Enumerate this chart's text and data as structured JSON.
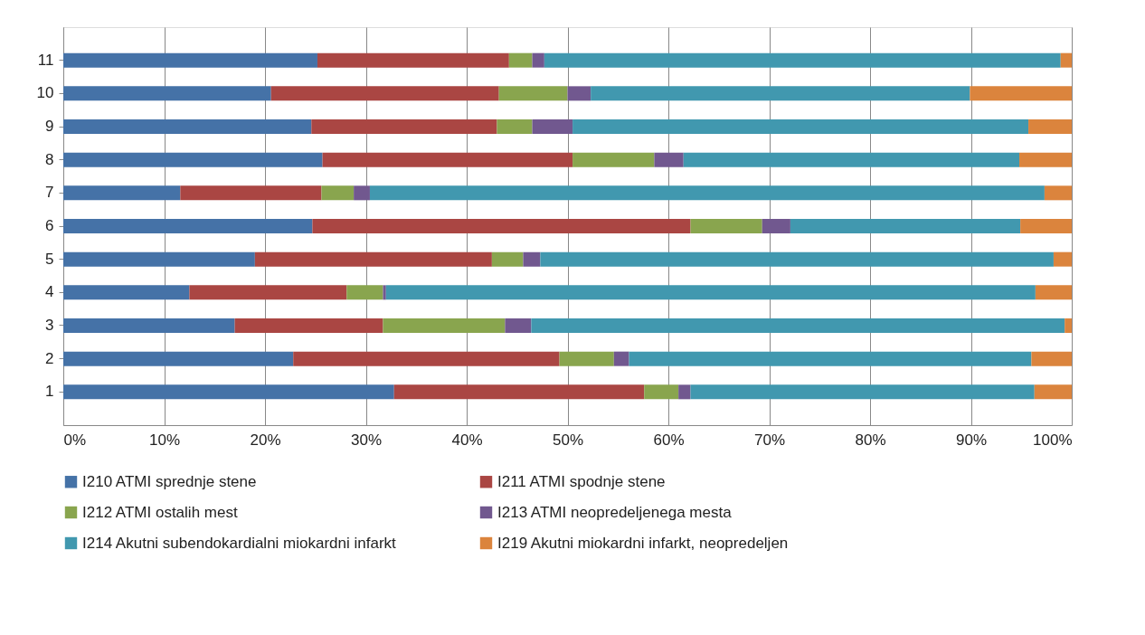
{
  "chart_data": {
    "type": "bar",
    "orientation": "horizontal",
    "stacked": true,
    "categories": [
      "11",
      "10",
      "9",
      "8",
      "7",
      "6",
      "5",
      "4",
      "3",
      "2",
      "1"
    ],
    "series": [
      {
        "name": "I210 ATMI sprednje stene",
        "color": "#4572a7",
        "values": [
          25.2,
          20.6,
          24.6,
          25.7,
          11.6,
          24.7,
          19.0,
          12.5,
          17.0,
          22.8,
          32.8
        ]
      },
      {
        "name": "I211 ATMI spodnje stene",
        "color": "#aa4643",
        "values": [
          19.0,
          22.6,
          18.4,
          24.8,
          14.0,
          37.5,
          23.5,
          15.6,
          14.7,
          26.4,
          24.8
        ]
      },
      {
        "name": "I212 ATMI ostalih mest",
        "color": "#89a54e",
        "values": [
          2.3,
          6.8,
          3.5,
          8.1,
          3.2,
          7.1,
          3.1,
          3.6,
          12.1,
          5.4,
          3.4
        ]
      },
      {
        "name": "I213 ATMI neopredeljenega mesta",
        "color": "#71588f",
        "values": [
          1.2,
          2.3,
          4.0,
          2.9,
          1.6,
          2.8,
          1.7,
          0.3,
          2.6,
          1.5,
          1.2
        ]
      },
      {
        "name": "I214 Akutni subendokardialni miokardni infarkt",
        "color": "#4198af",
        "values": [
          51.2,
          37.6,
          45.2,
          33.3,
          66.9,
          22.8,
          50.9,
          64.4,
          52.9,
          39.9,
          34.1
        ]
      },
      {
        "name": "I219 Akutni miokardni infarkt, neopredeljen",
        "color": "#db843d",
        "values": [
          1.1,
          10.1,
          4.3,
          5.2,
          2.7,
          5.1,
          1.8,
          3.6,
          0.7,
          4.0,
          3.7
        ]
      }
    ],
    "xlim": [
      0,
      100
    ],
    "xticks": [
      {
        "value": 0,
        "label": "0%"
      },
      {
        "value": 10,
        "label": "10%"
      },
      {
        "value": 20,
        "label": "20%"
      },
      {
        "value": 30,
        "label": "30%"
      },
      {
        "value": 40,
        "label": "40%"
      },
      {
        "value": 50,
        "label": "50%"
      },
      {
        "value": 60,
        "label": "60%"
      },
      {
        "value": 70,
        "label": "70%"
      },
      {
        "value": 80,
        "label": "80%"
      },
      {
        "value": 90,
        "label": "90%"
      },
      {
        "value": 100,
        "label": "100%"
      }
    ],
    "grid": "x",
    "legend": "bottom"
  }
}
